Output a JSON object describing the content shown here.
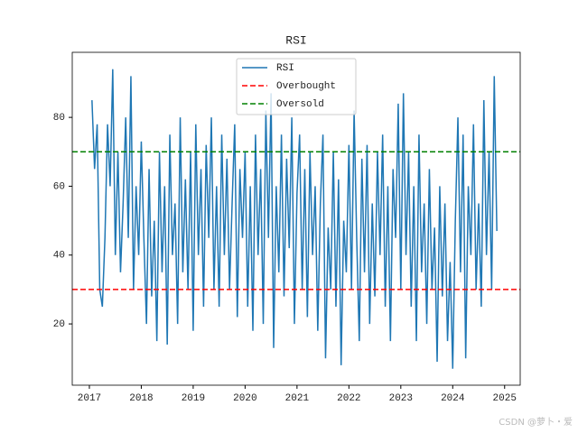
{
  "chart_data": {
    "type": "line",
    "title": "RSI",
    "x": [
      2017.05,
      2017.1,
      2017.15,
      2017.2,
      2017.25,
      2017.3,
      2017.35,
      2017.4,
      2017.45,
      2017.5,
      2017.55,
      2017.6,
      2017.65,
      2017.7,
      2017.75,
      2017.8,
      2017.85,
      2017.9,
      2017.95,
      2018.0,
      2018.05,
      2018.1,
      2018.15,
      2018.2,
      2018.25,
      2018.3,
      2018.35,
      2018.4,
      2018.45,
      2018.5,
      2018.55,
      2018.6,
      2018.65,
      2018.7,
      2018.75,
      2018.8,
      2018.85,
      2018.9,
      2018.95,
      2019.0,
      2019.05,
      2019.1,
      2019.15,
      2019.2,
      2019.25,
      2019.3,
      2019.35,
      2019.4,
      2019.45,
      2019.5,
      2019.55,
      2019.6,
      2019.65,
      2019.7,
      2019.75,
      2019.8,
      2019.85,
      2019.9,
      2019.95,
      2020.0,
      2020.05,
      2020.1,
      2020.15,
      2020.2,
      2020.25,
      2020.3,
      2020.35,
      2020.4,
      2020.45,
      2020.5,
      2020.55,
      2020.6,
      2020.65,
      2020.7,
      2020.75,
      2020.8,
      2020.85,
      2020.9,
      2020.95,
      2021.0,
      2021.05,
      2021.1,
      2021.15,
      2021.2,
      2021.25,
      2021.3,
      2021.35,
      2021.4,
      2021.45,
      2021.5,
      2021.55,
      2021.6,
      2021.65,
      2021.7,
      2021.75,
      2021.8,
      2021.85,
      2021.9,
      2021.95,
      2022.0,
      2022.05,
      2022.1,
      2022.15,
      2022.2,
      2022.25,
      2022.3,
      2022.35,
      2022.4,
      2022.45,
      2022.5,
      2022.55,
      2022.6,
      2022.65,
      2022.7,
      2022.75,
      2022.8,
      2022.85,
      2022.9,
      2022.95,
      2023.0,
      2023.05,
      2023.1,
      2023.15,
      2023.2,
      2023.25,
      2023.3,
      2023.35,
      2023.4,
      2023.45,
      2023.5,
      2023.55,
      2023.6,
      2023.65,
      2023.7,
      2023.75,
      2023.8,
      2023.85,
      2023.9,
      2023.95,
      2024.0,
      2024.05,
      2024.1,
      2024.15,
      2024.2,
      2024.25,
      2024.3,
      2024.35,
      2024.4,
      2024.45,
      2024.5,
      2024.55,
      2024.6,
      2024.65,
      2024.7,
      2024.75,
      2024.8,
      2024.85
    ],
    "series": [
      {
        "name": "RSI",
        "color": "#1f77b4",
        "values": [
          85,
          65,
          78,
          30,
          25,
          45,
          78,
          60,
          94,
          40,
          70,
          35,
          55,
          80,
          45,
          92,
          30,
          60,
          40,
          73,
          45,
          20,
          65,
          28,
          50,
          15,
          70,
          35,
          60,
          14,
          75,
          40,
          55,
          20,
          80,
          35,
          62,
          30,
          70,
          18,
          78,
          40,
          65,
          25,
          72,
          45,
          80,
          30,
          60,
          25,
          75,
          40,
          68,
          30,
          55,
          78,
          22,
          65,
          45,
          70,
          25,
          60,
          18,
          75,
          40,
          65,
          20,
          82,
          45,
          87,
          13,
          60,
          35,
          75,
          28,
          68,
          42,
          80,
          20,
          58,
          75,
          30,
          65,
          22,
          70,
          40,
          60,
          18,
          55,
          75,
          10,
          48,
          30,
          70,
          25,
          62,
          8,
          50,
          35,
          72,
          30,
          82,
          45,
          15,
          68,
          35,
          72,
          20,
          55,
          28,
          70,
          40,
          75,
          25,
          60,
          15,
          65,
          45,
          84,
          30,
          87,
          40,
          70,
          25,
          60,
          15,
          75,
          35,
          55,
          20,
          65,
          30,
          48,
          9,
          60,
          28,
          55,
          15,
          38,
          7,
          50,
          80,
          35,
          75,
          10,
          60,
          40,
          78,
          30,
          55,
          25,
          85,
          40,
          70,
          30,
          92,
          47
        ]
      }
    ],
    "hlines": [
      {
        "name": "Overbought",
        "color": "#ff0000",
        "value": 30
      },
      {
        "name": "Oversold",
        "color": "#008000",
        "value": 70
      }
    ],
    "xlim": [
      2016.67,
      2025.3
    ],
    "xticks": [
      2017,
      2018,
      2019,
      2020,
      2021,
      2022,
      2023,
      2024,
      2025
    ],
    "ylim": [
      2.2,
      98.9
    ],
    "yticks": [
      20,
      40,
      60,
      80
    ],
    "legend": "upper center",
    "watermark": "CSDN @萝卜・爱"
  }
}
